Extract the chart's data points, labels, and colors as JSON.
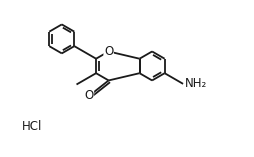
{
  "bg_color": "#ffffff",
  "line_color": "#1a1a1a",
  "line_width": 1.3,
  "font_size": 8.5,
  "figsize": [
    2.54,
    1.57
  ],
  "dpi": 100,
  "xlim": [
    0,
    10
  ],
  "ylim": [
    0,
    6.2
  ]
}
